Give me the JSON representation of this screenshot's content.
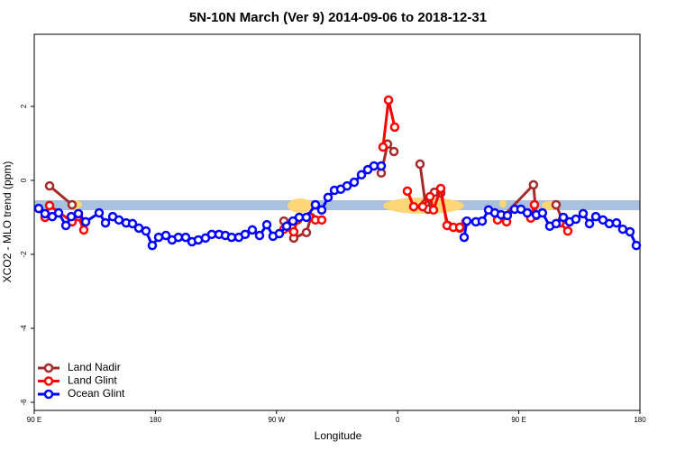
{
  "chart_data": {
    "type": "line",
    "title": "5N-10N March (Ver 9)   2014-09-06 to 2018-12-31",
    "x_label": "Longitude",
    "y_label": "XCO2 - MLO trend (ppm)",
    "xlim": [
      90,
      540
    ],
    "xticks": [
      {
        "value": 90,
        "label": "90 E"
      },
      {
        "value": 180,
        "label": "180"
      },
      {
        "value": 270,
        "label": "90 W"
      },
      {
        "value": 360,
        "label": "0"
      },
      {
        "value": 450,
        "label": "90 E"
      },
      {
        "value": 540,
        "label": "180"
      }
    ],
    "ylim": [
      -6.22,
      3.95
    ],
    "yticks": [
      2,
      0,
      -2,
      -4,
      -6
    ],
    "legend": "bottom-left",
    "series": [
      {
        "name": "Land Nadir",
        "color": "#a52a2a",
        "x": [
          101.4,
          118.1,
          null,
          275.5,
          282.8,
          292.2,
          295.6,
          null,
          347.8,
          352.5,
          357.2,
          null,
          376.6,
          380.6,
          382.6,
          387.3,
          392.0,
          397.3,
          406.1,
          null,
          438.2,
          460.9,
          462.9,
          null,
          477.7,
          482.4
        ],
        "values": [
          -0.15,
          -0.66,
          null,
          -1.1,
          -1.56,
          -1.41,
          -1.0,
          null,
          0.2,
          0.98,
          0.78,
          null,
          0.44,
          -0.63,
          -0.78,
          -0.32,
          -0.34,
          -1.22,
          -1.29,
          null,
          -0.98,
          -0.12,
          -0.95,
          null,
          -0.66,
          -1.07
        ]
      },
      {
        "name": "Land Glint",
        "color": "#ff0000",
        "x": [
          98.0,
          101.4,
          118.1,
          122.8,
          126.8,
          null,
          275.5,
          282.8,
          285.5,
          294.2,
          298.9,
          303.6,
          null,
          349.1,
          353.2,
          357.8,
          null,
          367.2,
          371.9,
          378.6,
          384.0,
          386.6,
          392.0,
          396.7,
          401.4,
          406.1,
          410.7,
          null,
          434.2,
          440.9,
          null,
          458.9,
          461.6,
          null,
          480.4,
          486.4
        ],
        "values": [
          -1.0,
          -0.68,
          -1.12,
          -0.98,
          -1.34,
          null,
          -1.32,
          -1.39,
          -1.07,
          -0.98,
          -1.07,
          -1.07,
          null,
          0.9,
          2.17,
          1.44,
          null,
          -0.29,
          -0.71,
          -0.71,
          -0.44,
          -0.8,
          -0.22,
          -1.22,
          -1.27,
          -1.27,
          -1.12,
          null,
          -1.07,
          -1.12,
          null,
          -1.02,
          -0.66,
          null,
          -1.15,
          -1.37
        ]
      },
      {
        "name": "Ocean Glint",
        "color": "#0000ff",
        "x": [
          93.3,
          98.0,
          103.4,
          108.1,
          113.5,
          117.5,
          122.8,
          128.2,
          138.2,
          142.9,
          148.3,
          152.9,
          158.3,
          163.0,
          167.7,
          173.0,
          177.7,
          182.4,
          187.8,
          192.4,
          197.1,
          202.5,
          207.2,
          211.9,
          217.2,
          221.9,
          227.3,
          232.0,
          236.6,
          242.0,
          246.7,
          252.0,
          257.4,
          262.8,
          267.4,
          272.1,
          277.5,
          282.2,
          286.9,
          292.2,
          298.9,
          303.6,
          308.3,
          313.0,
          317.7,
          322.4,
          327.7,
          333.1,
          337.8,
          342.4,
          347.8,
          null,
          409.4,
          411.4,
          418.1,
          422.8,
          427.5,
          432.2,
          436.9,
          441.5,
          446.9,
          451.6,
          456.3,
          463.0,
          467.6,
          473.0,
          477.7,
          483.1,
          487.7,
          492.4,
          497.8,
          502.5,
          507.2,
          512.5,
          517.2,
          522.6,
          527.2,
          532.6,
          537.3
        ],
        "values": [
          -0.76,
          -0.9,
          -0.98,
          -0.88,
          -1.22,
          -0.98,
          -0.9,
          -1.12,
          -0.88,
          -1.15,
          -0.98,
          -1.07,
          -1.15,
          -1.17,
          -1.29,
          -1.37,
          -1.76,
          -1.54,
          -1.49,
          -1.61,
          -1.54,
          -1.54,
          -1.66,
          -1.61,
          -1.56,
          -1.46,
          -1.46,
          -1.49,
          -1.54,
          -1.54,
          -1.46,
          -1.34,
          -1.49,
          -1.2,
          -1.51,
          -1.44,
          -1.24,
          -1.1,
          -1.0,
          -1.0,
          -0.66,
          -0.8,
          -0.46,
          -0.27,
          -0.24,
          -0.15,
          -0.05,
          0.15,
          0.29,
          0.39,
          0.39,
          null,
          -1.54,
          -1.1,
          -1.12,
          -1.1,
          -0.8,
          -0.88,
          -0.93,
          -0.95,
          -0.78,
          -0.78,
          -0.88,
          -0.93,
          -0.88,
          -1.24,
          -1.17,
          -1.0,
          -1.12,
          -1.05,
          -0.9,
          -1.17,
          -0.98,
          -1.07,
          -1.17,
          -1.15,
          -1.32,
          -1.39,
          -1.76
        ]
      }
    ]
  }
}
